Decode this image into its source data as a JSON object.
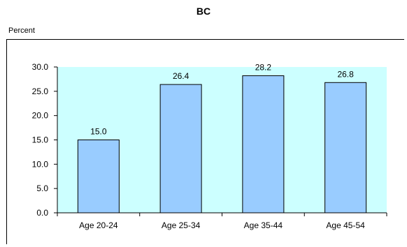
{
  "chart_data": {
    "type": "bar",
    "title": "BC",
    "ylabel": "Percent",
    "xlabel": "",
    "categories": [
      "Age 20-24",
      "Age 25-34",
      "Age 35-44",
      "Age 45-54"
    ],
    "values": [
      15.0,
      26.4,
      28.2,
      26.8
    ],
    "data_labels": [
      "15.0",
      "26.4",
      "28.2",
      "26.8"
    ],
    "ylim": [
      0,
      30
    ],
    "yticks": [
      "0.0",
      "5.0",
      "10.0",
      "15.0",
      "20.0",
      "25.0",
      "30.0"
    ],
    "grid": false,
    "legend": "none",
    "colors": {
      "plot_background": "#ccffff",
      "bar_fill": "#99ccff",
      "bar_stroke": "#000000"
    }
  }
}
